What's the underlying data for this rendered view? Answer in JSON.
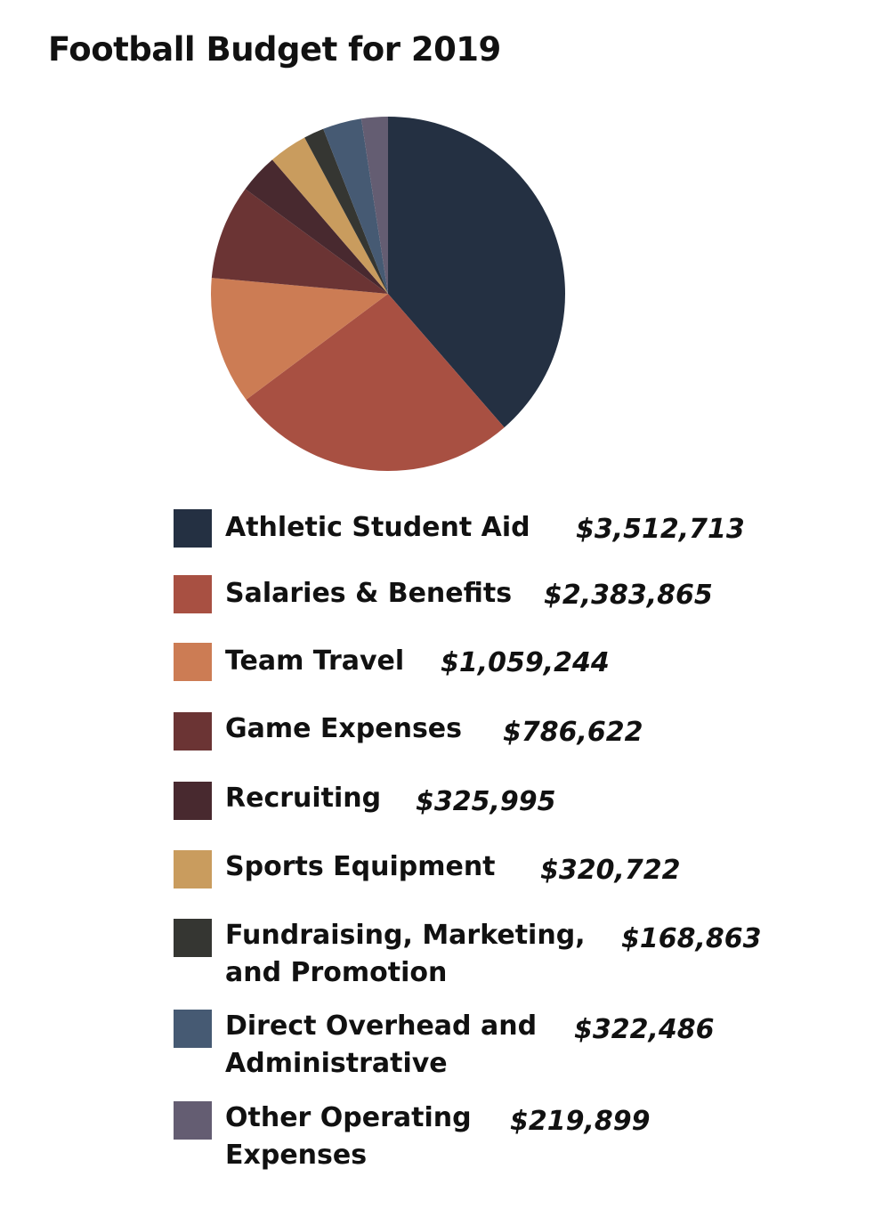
{
  "chart_data": {
    "type": "pie",
    "title": "Football Budget for 2019",
    "categories": [
      "Athletic Student Aid",
      "Salaries & Benefits",
      "Team Travel",
      "Game Expenses",
      "Recruiting",
      "Sports Equipment",
      "Fundraising, Marketing, and Promotion",
      "Direct Overhead and Administrative",
      "Other Operating Expenses"
    ],
    "values": [
      3512713,
      2383865,
      1059244,
      786622,
      325995,
      320722,
      168863,
      322486,
      219899
    ],
    "value_labels": [
      "$3,512,713",
      "$2,383,865",
      "$1,059,244",
      "$786,622",
      "$325,995",
      "$320,722",
      "$168,863",
      "$322,486",
      "$219,899"
    ],
    "colors": [
      "#243042",
      "#a85042",
      "#cc7c54",
      "#6b3434",
      "#48292f",
      "#c99c5e",
      "#353632",
      "#465a73",
      "#645d72"
    ],
    "legend_position": "bottom",
    "direction": "clockwise",
    "start": "top"
  }
}
